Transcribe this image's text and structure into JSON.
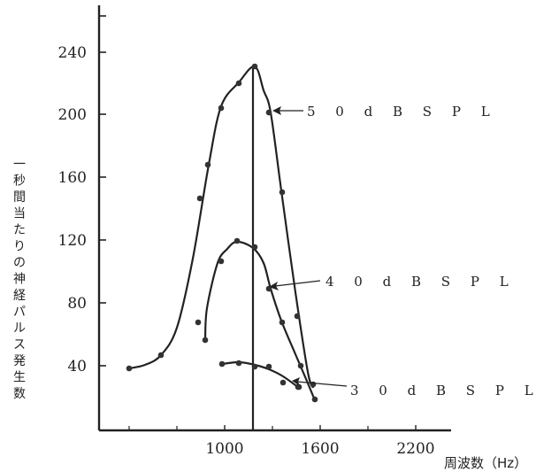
{
  "chart_data": {
    "type": "line",
    "xlabel": "周波数（Hz）",
    "ylabel": "一秒間当たりの神経パルス発生数",
    "xticks": [
      1000,
      1600,
      2200
    ],
    "yticks": [
      40,
      80,
      120,
      160,
      200,
      240
    ],
    "xlim": [
      200,
      2500
    ],
    "ylim": [
      0,
      260
    ],
    "vertical_marker_x": 1220,
    "grid": false,
    "series": [
      {
        "name": "5 0 d B S P L",
        "x": [
          200,
          400,
          700,
          800,
          900,
          1000,
          1100,
          1200,
          1300,
          1400,
          1500,
          1600
        ],
        "y": [
          38,
          45,
          145,
          167,
          203,
          219,
          229,
          200,
          149,
          70,
          38,
          27
        ],
        "curve_x": [
          200,
          300,
          400,
          500,
          600,
          700,
          800,
          900,
          1000,
          1100,
          1200,
          1260,
          1300,
          1400,
          1500,
          1560
        ],
        "curve_y": [
          38,
          40,
          46,
          65,
          102,
          145,
          180,
          205,
          220,
          228,
          229,
          214,
          200,
          149,
          70,
          37
        ]
      },
      {
        "name": "4 0 d B S P L",
        "x": [
          750,
          800,
          1000,
          1100,
          1200,
          1300,
          1400,
          1500,
          1600
        ],
        "y": [
          67,
          55,
          105,
          118,
          114,
          87,
          67,
          26,
          17
        ],
        "curve_x": [
          800,
          840,
          900,
          1000,
          1100,
          1180,
          1260,
          1300,
          1400,
          1500,
          1560,
          1600
        ],
        "curve_y": [
          55,
          80,
          100,
          113,
          118,
          115,
          100,
          87,
          60,
          35,
          22,
          17
        ]
      },
      {
        "name": "3 0 d B S P L",
        "x": [
          1000,
          1100,
          1200,
          1300,
          1400,
          1500
        ],
        "y": [
          40,
          41,
          38,
          38,
          28,
          33
        ],
        "curve_x": [
          1000,
          1100,
          1200,
          1300,
          1400,
          1460
        ],
        "curve_y": [
          40,
          41,
          40,
          38,
          32,
          26
        ]
      }
    ]
  }
}
